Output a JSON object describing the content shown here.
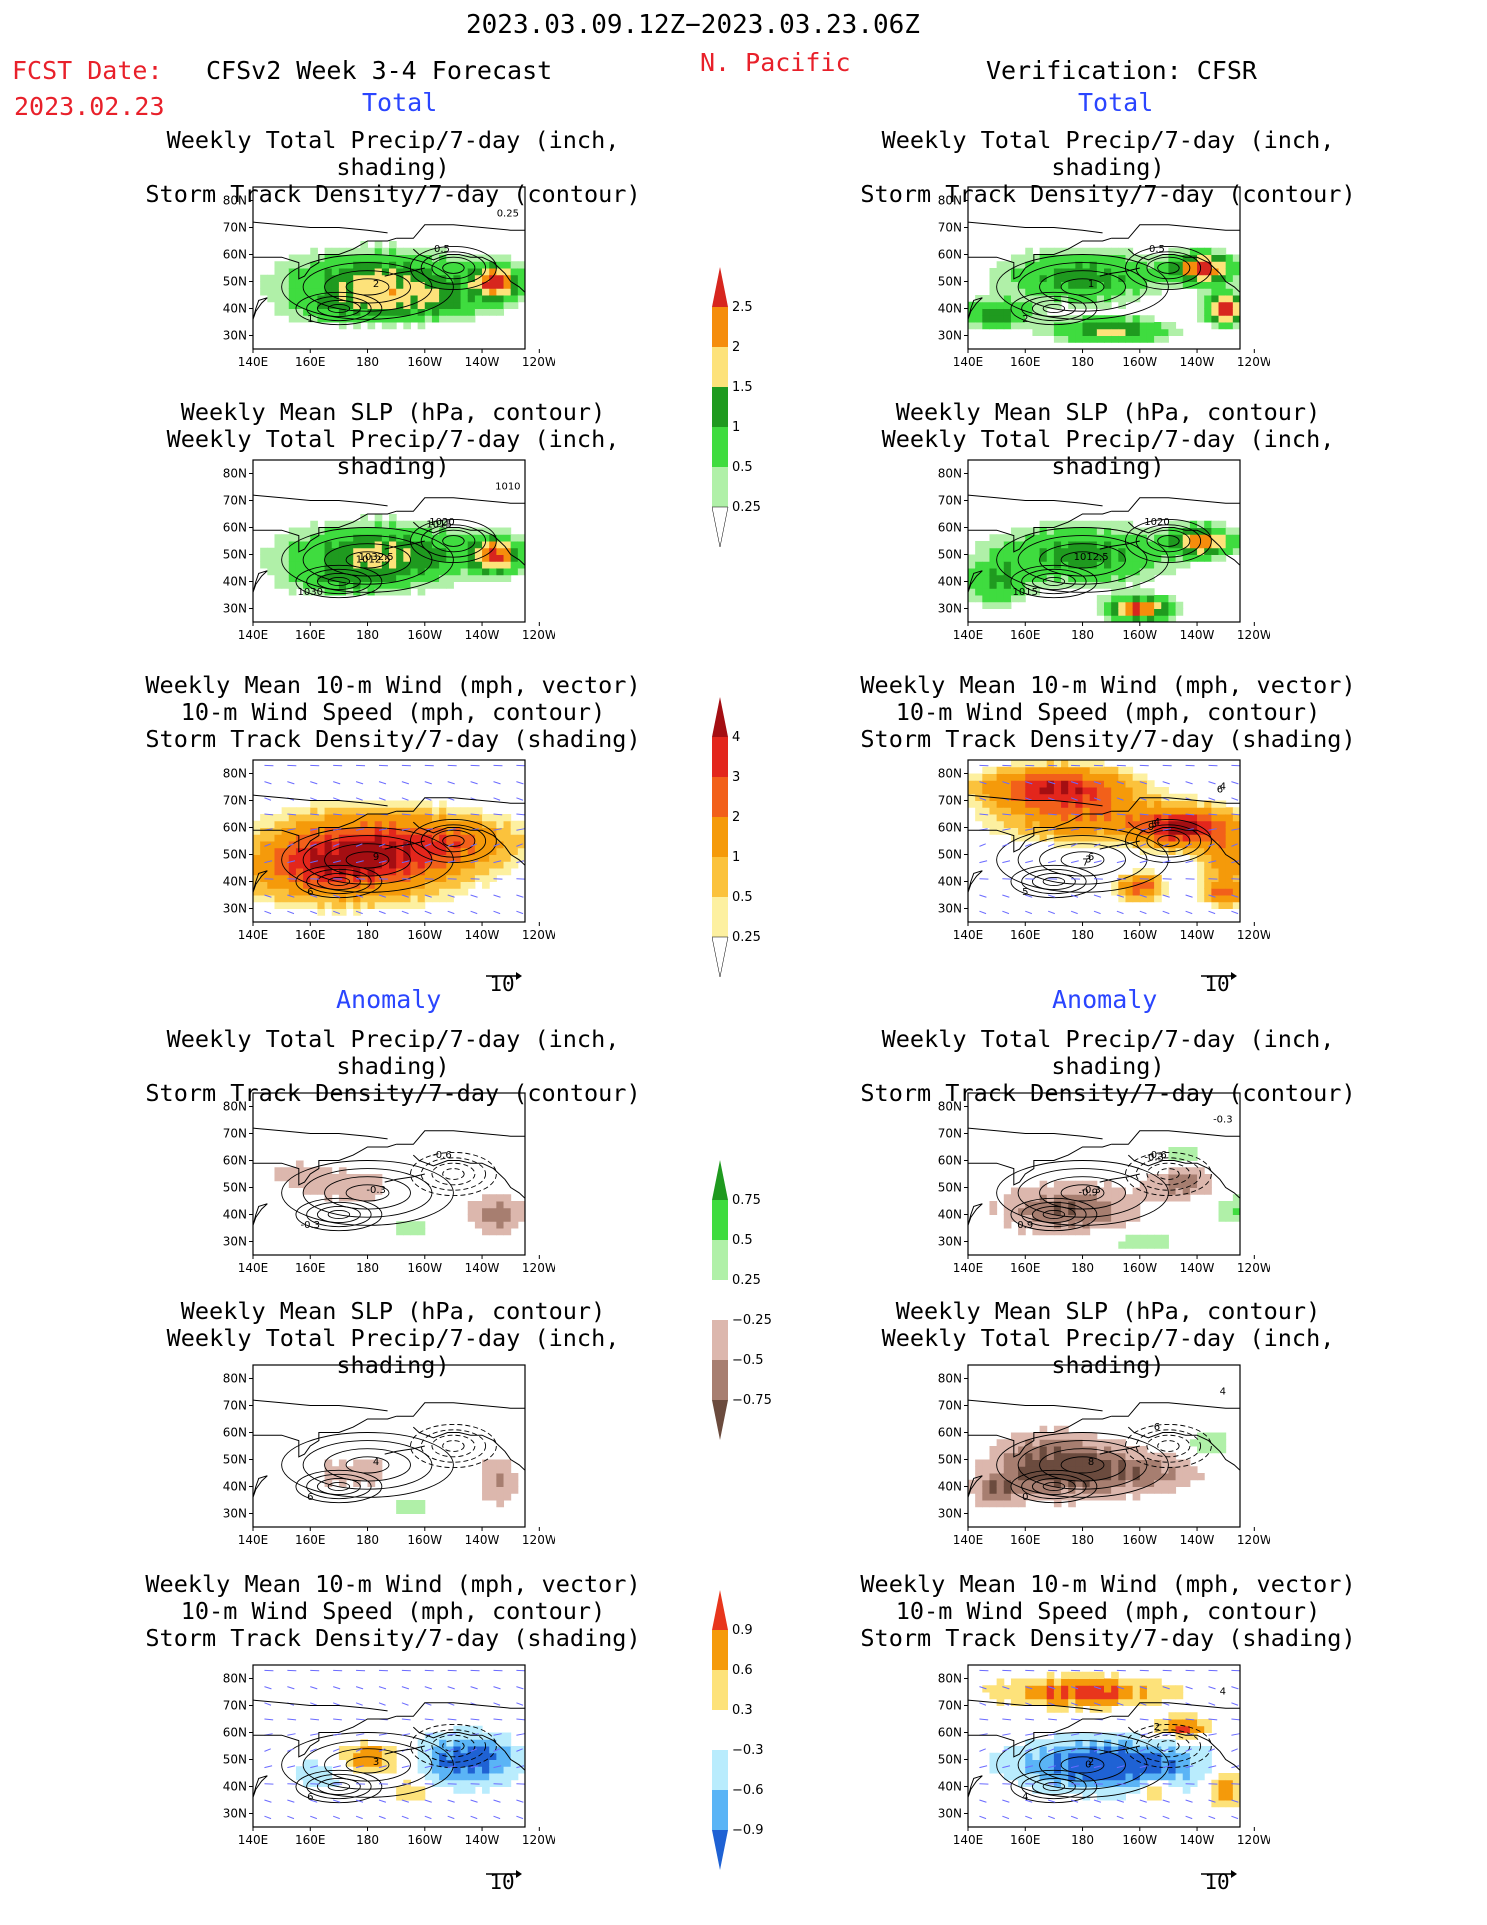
{
  "header": {
    "period": "2023.03.09.12Z−2023.03.23.06Z",
    "fcst_label": "FCST Date:",
    "fcst_date": "2023.02.23",
    "model": "CFSv2 Week 3-4 Forecast",
    "region": "N. Pacific",
    "verification": "Verification: CFSR"
  },
  "sections": {
    "total": "Total",
    "anomaly": "Anomaly"
  },
  "panel_titles": {
    "precip_storm": [
      "Weekly Total Precip/7-day (inch, shading)",
      "Storm Track Density/7-day (contour)"
    ],
    "slp_precip": [
      "Weekly Mean SLP (hPa, contour)",
      "Weekly Total Precip/7-day (inch, shading)"
    ],
    "wind_storm": [
      "Weekly Mean 10-m Wind (mph, vector)",
      "10-m Wind Speed (mph, contour)",
      "Storm Track Density/7-day (shading)"
    ]
  },
  "vector_ref": "10",
  "colors": {
    "header_red": "#e8202a",
    "section_blue": "#2a45ff",
    "vector_blue": "#6a6aff"
  },
  "chart_data": [
    {
      "type": "heatmap",
      "id": "fcst-total-precip-storm",
      "column": "CFSv2 Week 3-4 Forecast",
      "section": "Total",
      "title": "Weekly Total Precip/7-day (inch, shading) / Storm Track Density/7-day (contour)",
      "x_ticks": [
        "140E",
        "160E",
        "180",
        "160W",
        "140W",
        "120W"
      ],
      "y_ticks": [
        "80N",
        "70N",
        "60N",
        "50N",
        "40N",
        "30N"
      ],
      "xlim": [
        "140E",
        "125W"
      ],
      "ylim": [
        "25N",
        "85N"
      ],
      "colorbar": "precip_total",
      "contour_labels": [
        "1",
        "2",
        "0.5",
        "0.25"
      ]
    },
    {
      "type": "heatmap",
      "id": "cfsr-total-precip-storm",
      "column": "Verification: CFSR",
      "section": "Total",
      "title": "Weekly Total Precip/7-day (inch, shading) / Storm Track Density/7-day (contour)",
      "x_ticks": [
        "140E",
        "160E",
        "180",
        "160W",
        "140W",
        "120W"
      ],
      "y_ticks": [
        "80N",
        "70N",
        "60N",
        "50N",
        "40N",
        "30N"
      ],
      "xlim": [
        "140E",
        "125W"
      ],
      "ylim": [
        "25N",
        "85N"
      ],
      "colorbar": "precip_total",
      "contour_labels": [
        "2",
        "1",
        "0.5"
      ]
    },
    {
      "type": "heatmap",
      "id": "fcst-total-slp-precip",
      "column": "CFSv2 Week 3-4 Forecast",
      "section": "Total",
      "title": "Weekly Mean SLP (hPa, contour) / Weekly Total Precip/7-day (inch, shading)",
      "x_ticks": [
        "140E",
        "160E",
        "180",
        "160W",
        "140W",
        "120W"
      ],
      "y_ticks": [
        "80N",
        "70N",
        "60N",
        "50N",
        "40N",
        "30N"
      ],
      "xlim": [
        "140E",
        "125W"
      ],
      "ylim": [
        "25N",
        "85N"
      ],
      "colorbar": "precip_total",
      "contour_labels": [
        "1030",
        "1032.5",
        "1020",
        "1010",
        "1012.5",
        "1015"
      ]
    },
    {
      "type": "heatmap",
      "id": "cfsr-total-slp-precip",
      "column": "Verification: CFSR",
      "section": "Total",
      "title": "Weekly Mean SLP (hPa, contour) / Weekly Total Precip/7-day (inch, shading)",
      "x_ticks": [
        "140E",
        "160E",
        "180",
        "160W",
        "140W",
        "120W"
      ],
      "y_ticks": [
        "80N",
        "70N",
        "60N",
        "50N",
        "40N",
        "30N"
      ],
      "xlim": [
        "140E",
        "125W"
      ],
      "ylim": [
        "25N",
        "85N"
      ],
      "colorbar": "precip_total",
      "contour_labels": [
        "1015",
        "1012.5",
        "1020"
      ]
    },
    {
      "type": "heatmap",
      "id": "fcst-total-wind-storm",
      "column": "CFSv2 Week 3-4 Forecast",
      "section": "Total",
      "title": "Weekly Mean 10-m Wind (mph, vector) / 10-m Wind Speed (mph, contour) / Storm Track Density/7-day (shading)",
      "x_ticks": [
        "140E",
        "160E",
        "180",
        "160W",
        "140W",
        "120W"
      ],
      "y_ticks": [
        "80N",
        "70N",
        "60N",
        "50N",
        "40N",
        "30N"
      ],
      "xlim": [
        "140E",
        "125W"
      ],
      "ylim": [
        "25N",
        "85N"
      ],
      "colorbar": "storm_total",
      "contour_labels": [
        "6",
        "9"
      ]
    },
    {
      "type": "heatmap",
      "id": "cfsr-total-wind-storm",
      "column": "Verification: CFSR",
      "section": "Total",
      "title": "Weekly Mean 10-m Wind (mph, vector) / 10-m Wind Speed (mph, contour) / Storm Track Density/7-day (shading)",
      "x_ticks": [
        "140E",
        "160E",
        "180",
        "160W",
        "140W",
        "120W"
      ],
      "y_ticks": [
        "80N",
        "70N",
        "60N",
        "50N",
        "40N",
        "30N"
      ],
      "xlim": [
        "140E",
        "125W"
      ],
      "ylim": [
        "25N",
        "85N"
      ],
      "colorbar": "storm_total",
      "contour_labels": [
        "5",
        "6",
        "4",
        "4",
        "3",
        "5",
        "6",
        "7",
        "9"
      ]
    },
    {
      "type": "heatmap",
      "id": "fcst-anom-precip-storm",
      "column": "CFSv2 Week 3-4 Forecast",
      "section": "Anomaly",
      "title": "Weekly Total Precip/7-day (inch, shading) / Storm Track Density/7-day (contour)",
      "x_ticks": [
        "140E",
        "160E",
        "180",
        "160W",
        "140W",
        "120W"
      ],
      "y_ticks": [
        "80N",
        "70N",
        "60N",
        "50N",
        "40N",
        "30N"
      ],
      "xlim": [
        "140E",
        "125W"
      ],
      "ylim": [
        "25N",
        "85N"
      ],
      "colorbar": "precip_anom",
      "contour_labels": [
        "-0.3",
        "-0.3",
        "-0.6"
      ]
    },
    {
      "type": "heatmap",
      "id": "cfsr-anom-precip-storm",
      "column": "Verification: CFSR",
      "section": "Anomaly",
      "title": "Weekly Total Precip/7-day (inch, shading) / Storm Track Density/7-day (contour)",
      "x_ticks": [
        "140E",
        "160E",
        "180",
        "160W",
        "140W",
        "120W"
      ],
      "y_ticks": [
        "80N",
        "70N",
        "60N",
        "50N",
        "40N",
        "30N"
      ],
      "xlim": [
        "140E",
        "125W"
      ],
      "ylim": [
        "25N",
        "85N"
      ],
      "colorbar": "precip_anom",
      "contour_labels": [
        "0.9",
        "-0.3",
        "-0.6",
        "-0.3",
        "-0.9",
        "-0.3"
      ]
    },
    {
      "type": "heatmap",
      "id": "fcst-anom-slp-precip",
      "column": "CFSv2 Week 3-4 Forecast",
      "section": "Anomaly",
      "title": "Weekly Mean SLP (hPa, contour) / Weekly Total Precip/7-day (inch, shading)",
      "x_ticks": [
        "140E",
        "160E",
        "180",
        "160W",
        "140W",
        "120W"
      ],
      "y_ticks": [
        "80N",
        "70N",
        "60N",
        "50N",
        "40N",
        "30N"
      ],
      "xlim": [
        "140E",
        "125W"
      ],
      "ylim": [
        "25N",
        "85N"
      ],
      "colorbar": "precip_anom",
      "contour_labels": [
        "6",
        "4"
      ]
    },
    {
      "type": "heatmap",
      "id": "cfsr-anom-slp-precip",
      "column": "Verification: CFSR",
      "section": "Anomaly",
      "title": "Weekly Mean SLP (hPa, contour) / Weekly Total Precip/7-day (inch, shading)",
      "x_ticks": [
        "140E",
        "160E",
        "180",
        "160W",
        "140W",
        "120W"
      ],
      "y_ticks": [
        "80N",
        "70N",
        "60N",
        "50N",
        "40N",
        "30N"
      ],
      "xlim": [
        "140E",
        "125W"
      ],
      "ylim": [
        "25N",
        "85N"
      ],
      "colorbar": "precip_anom",
      "contour_labels": [
        "0",
        "8",
        "6",
        "4"
      ]
    },
    {
      "type": "heatmap",
      "id": "fcst-anom-wind-storm",
      "column": "CFSv2 Week 3-4 Forecast",
      "section": "Anomaly",
      "title": "Weekly Mean 10-m Wind (mph, vector) / 10-m Wind Speed (mph, contour) / Storm Track Density/7-day (shading)",
      "x_ticks": [
        "140E",
        "160E",
        "180",
        "160W",
        "140W",
        "120W"
      ],
      "y_ticks": [
        "80N",
        "70N",
        "60N",
        "50N",
        "40N",
        "30N"
      ],
      "xlim": [
        "140E",
        "125W"
      ],
      "ylim": [
        "25N",
        "85N"
      ],
      "colorbar": "storm_anom",
      "contour_labels": [
        "6",
        "3"
      ]
    },
    {
      "type": "heatmap",
      "id": "cfsr-anom-wind-storm",
      "column": "Verification: CFSR",
      "section": "Anomaly",
      "title": "Weekly Mean 10-m Wind (mph, vector) / 10-m Wind Speed (mph, contour) / Storm Track Density/7-day (shading)",
      "x_ticks": [
        "140E",
        "160E",
        "180",
        "160W",
        "140W",
        "120W"
      ],
      "y_ticks": [
        "80N",
        "70N",
        "60N",
        "50N",
        "40N",
        "30N"
      ],
      "xlim": [
        "140E",
        "125W"
      ],
      "ylim": [
        "25N",
        "85N"
      ],
      "colorbar": "storm_anom",
      "contour_labels": [
        "4",
        "2",
        "2",
        "4",
        "0"
      ]
    }
  ],
  "colorbars": {
    "precip_total": {
      "labels": [
        "2.5",
        "2",
        "1.5",
        "1",
        "0.5",
        "0.25"
      ],
      "colors": [
        "#d7261e",
        "#f58d0c",
        "#fde27a",
        "#1f9a1f",
        "#3fdc3f",
        "#b0f0a8"
      ]
    },
    "storm_total": {
      "labels": [
        "4",
        "3",
        "2",
        "1",
        "0.5",
        "0.25"
      ],
      "colors": [
        "#a40e12",
        "#e3261c",
        "#f2601a",
        "#f59a0a",
        "#fbc23c",
        "#fdf0a0"
      ]
    },
    "precip_anom": {
      "labels": [
        "0.75",
        "0.5",
        "0.25",
        "−0.25",
        "−0.5",
        "−0.75"
      ],
      "colors": [
        "#1f9a1f",
        "#3fdc3f",
        "#b0f0a8",
        "#ffffff",
        "#dcb7ad",
        "#a77e70",
        "#6b4b3e"
      ]
    },
    "storm_anom": {
      "labels": [
        "0.9",
        "0.6",
        "0.3",
        "−0.3",
        "−0.6",
        "−0.9"
      ],
      "colors": [
        "#e8361c",
        "#f59a0a",
        "#fde27a",
        "#ffffff",
        "#b9ecfd",
        "#5ab4f6",
        "#1f62d4"
      ]
    }
  }
}
